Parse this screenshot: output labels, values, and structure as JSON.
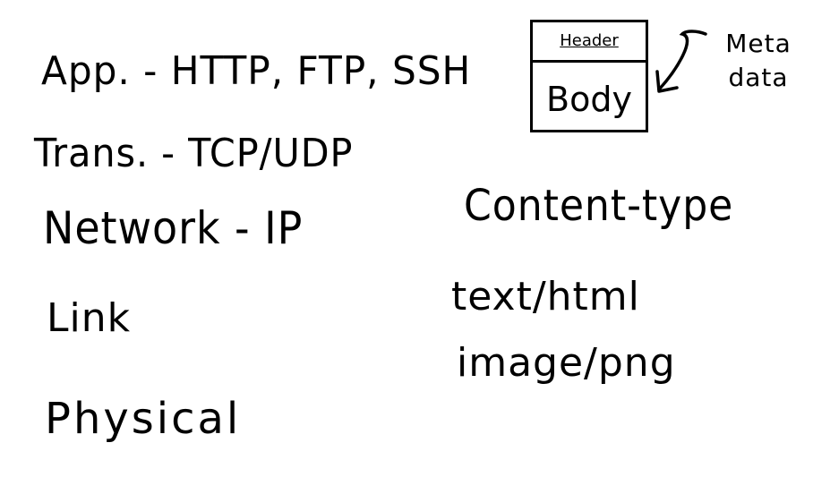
{
  "layers": [
    {
      "name": "App.",
      "detail": "HTTP, FTP, SSH"
    },
    {
      "name": "Trans.",
      "detail": "TCP/UDP"
    },
    {
      "name": "Network",
      "detail": "IP"
    },
    {
      "name": "Link",
      "detail": ""
    },
    {
      "name": "Physical",
      "detail": ""
    }
  ],
  "layer_lines": {
    "app": "App. - HTTP, FTP, SSH",
    "trans": "Trans. - TCP/UDP",
    "network": "Network - IP",
    "link": "Link",
    "physical": "Physical"
  },
  "message": {
    "header": "Header",
    "body": "Body",
    "annotation": "Meta data"
  },
  "content_type": {
    "heading": "Content-type",
    "examples": [
      "text/html",
      "image/png"
    ]
  }
}
